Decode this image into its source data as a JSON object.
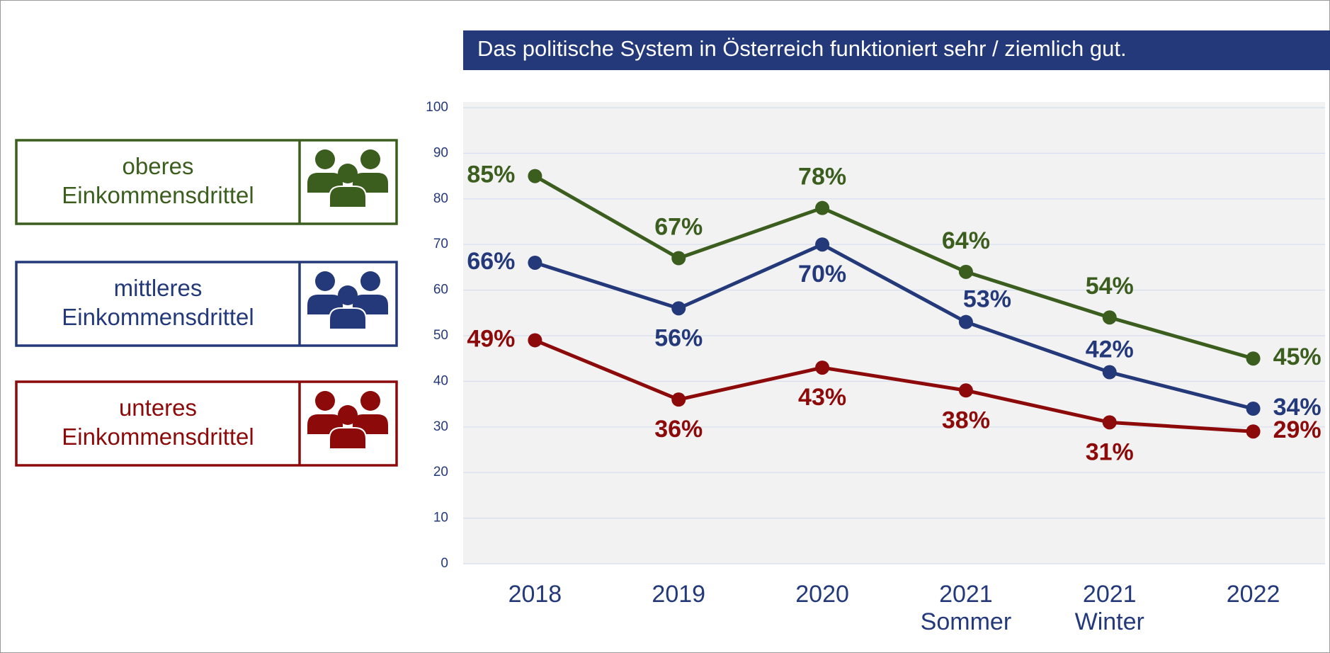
{
  "chart_data": {
    "type": "line",
    "title": "Das politische System in Österreich funktioniert sehr / ziemlich gut.",
    "categories": [
      "2018",
      "2019",
      "2020",
      "2021\nSommer",
      "2021\nWinter",
      "2022"
    ],
    "series": [
      {
        "name": "oberes\nEinkommensdrittel",
        "color": "#3b5e1f",
        "values": [
          85,
          67,
          78,
          64,
          54,
          45
        ],
        "value_labels": [
          "85%",
          "67%",
          "78%",
          "64%",
          "54%",
          "45%"
        ]
      },
      {
        "name": "mittleres\nEinkommensdrittel",
        "color": "#24397a",
        "values": [
          66,
          56,
          70,
          53,
          42,
          34
        ],
        "value_labels": [
          "66%",
          "56%",
          "70%",
          "53%",
          "42%",
          "34%"
        ]
      },
      {
        "name": "unteres\nEinkommensdrittel",
        "color": "#8c0a0a",
        "values": [
          49,
          36,
          43,
          38,
          31,
          29
        ],
        "value_labels": [
          "49%",
          "36%",
          "43%",
          "38%",
          "31%",
          "29%"
        ]
      }
    ],
    "ylim": [
      0,
      100
    ],
    "yticks": [
      0,
      10,
      20,
      30,
      40,
      50,
      60,
      70,
      80,
      90,
      100
    ],
    "grid": true
  }
}
